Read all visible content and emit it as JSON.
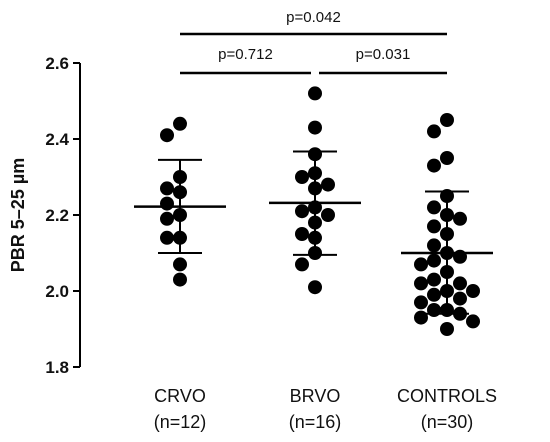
{
  "chart_data": {
    "type": "scatter",
    "ylabel": "PBR 5–25 µm",
    "ylim": [
      1.8,
      2.6
    ],
    "yticks": [
      "1.8",
      "2.0",
      "2.2",
      "2.4",
      "2.6"
    ],
    "yticks_values": [
      1.8,
      2.0,
      2.2,
      2.4,
      2.6
    ],
    "grid": false,
    "groups": [
      {
        "label_line1": "CRVO",
        "label_line2": "(n=12)",
        "mean": 2.222,
        "sd_upper": 2.345,
        "sd_lower": 2.1,
        "points": [
          2.44,
          2.41,
          2.3,
          2.27,
          2.26,
          2.23,
          2.2,
          2.19,
          2.14,
          2.14,
          2.07,
          2.03
        ]
      },
      {
        "label_line1": "BRVO",
        "label_line2": "(n=16)",
        "mean": 2.232,
        "sd_upper": 2.367,
        "sd_lower": 2.095,
        "points": [
          2.52,
          2.43,
          2.36,
          2.31,
          2.3,
          2.28,
          2.27,
          2.22,
          2.21,
          2.2,
          2.18,
          2.15,
          2.14,
          2.1,
          2.07,
          2.01
        ]
      },
      {
        "label_line1": "CONTROLS",
        "label_line2": "(n=30)",
        "mean": 2.1,
        "sd_upper": 2.262,
        "sd_lower": 1.94,
        "points": [
          2.45,
          2.42,
          2.35,
          2.33,
          2.25,
          2.22,
          2.2,
          2.19,
          2.17,
          2.15,
          2.12,
          2.1,
          2.09,
          2.08,
          2.07,
          2.05,
          2.03,
          2.02,
          2.02,
          2.0,
          2.0,
          1.99,
          1.98,
          1.97,
          1.95,
          1.95,
          1.94,
          1.93,
          1.92,
          1.9
        ]
      }
    ],
    "comparisons": [
      {
        "from": 0,
        "to": 2,
        "label": "p=0.042"
      },
      {
        "from": 0,
        "to": 1,
        "label": "p=0.712"
      },
      {
        "from": 1,
        "to": 2,
        "label": "p=0.031"
      }
    ]
  }
}
